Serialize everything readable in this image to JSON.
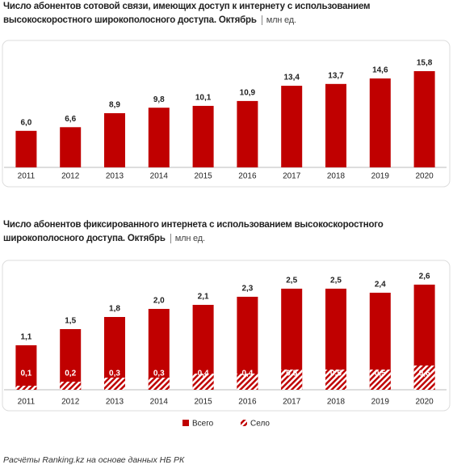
{
  "chart_data": [
    {
      "type": "bar",
      "title": "Число абонентов сотовой связи, имеющих доступ к интернету с использованием высокоскоростного широкополосного доступа. Октябрь",
      "unit": "млн ед.",
      "categories": [
        "2011",
        "2012",
        "2013",
        "2014",
        "2015",
        "2016",
        "2017",
        "2018",
        "2019",
        "2020"
      ],
      "values": [
        6.0,
        6.6,
        8.9,
        9.8,
        10.1,
        10.9,
        13.4,
        13.7,
        14.6,
        15.8
      ],
      "value_labels": [
        "6,0",
        "6,6",
        "8,9",
        "9,8",
        "10,1",
        "10,9",
        "13,4",
        "13,7",
        "14,6",
        "15,8"
      ],
      "color": "#c00000"
    },
    {
      "type": "overlap-bar",
      "title": "Число абонентов фиксированного интернета с использованием высокоскоростного широкополосного доступа. Октябрь",
      "unit": "млн ед.",
      "categories": [
        "2011",
        "2012",
        "2013",
        "2014",
        "2015",
        "2016",
        "2017",
        "2018",
        "2019",
        "2020"
      ],
      "series": [
        {
          "name": "Всего",
          "color": "#c00000",
          "values": [
            1.1,
            1.5,
            1.8,
            2.0,
            2.1,
            2.3,
            2.5,
            2.5,
            2.4,
            2.6
          ],
          "value_labels": [
            "1,1",
            "1,5",
            "1,8",
            "2,0",
            "2,1",
            "2,3",
            "2,5",
            "2,5",
            "2,4",
            "2,6"
          ]
        },
        {
          "name": "Село",
          "color": "#c00000",
          "pattern": "hatch",
          "values": [
            0.1,
            0.2,
            0.3,
            0.3,
            0.4,
            0.4,
            0.5,
            0.5,
            0.5,
            0.6
          ],
          "value_labels": [
            "0,1",
            "0,2",
            "0,3",
            "0,3",
            "0,4",
            "0,4",
            "0,5",
            "0,5",
            "0,5",
            "0,6"
          ]
        }
      ],
      "legend": "bottom"
    }
  ],
  "source": "Расчёты Ranking.kz на основе данных НБ РК"
}
